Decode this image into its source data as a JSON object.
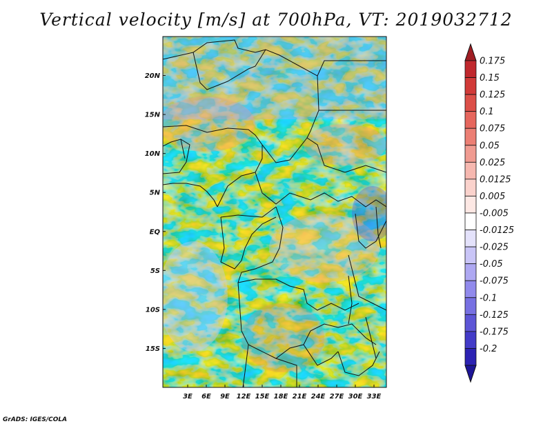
{
  "title": "Vertical velocity [m/s] at 700hPa, VT: 2019032712",
  "credit": "GrADS: IGES/COLA",
  "map": {
    "lon_range": [
      -1,
      35
    ],
    "lat_range": [
      -20,
      25
    ],
    "lat_ticks": [
      {
        "lat": 20,
        "label": "20N"
      },
      {
        "lat": 15,
        "label": "15N"
      },
      {
        "lat": 10,
        "label": "10N"
      },
      {
        "lat": 5,
        "label": "5N"
      },
      {
        "lat": 0,
        "label": "EQ"
      },
      {
        "lat": -5,
        "label": "5S"
      },
      {
        "lat": -10,
        "label": "10S"
      },
      {
        "lat": -15,
        "label": "15S"
      }
    ],
    "lon_ticks": [
      {
        "lon": 3,
        "label": "3E"
      },
      {
        "lon": 6,
        "label": "6E"
      },
      {
        "lon": 9,
        "label": "9E"
      },
      {
        "lon": 12,
        "label": "12E"
      },
      {
        "lon": 15,
        "label": "15E"
      },
      {
        "lon": 18,
        "label": "18E"
      },
      {
        "lon": 21,
        "label": "21E"
      },
      {
        "lon": 24,
        "label": "24E"
      },
      {
        "lon": 27,
        "label": "27E"
      },
      {
        "lon": 30,
        "label": "30E"
      },
      {
        "lon": 33,
        "label": "33E"
      }
    ]
  },
  "colorbar": {
    "levels": [
      {
        "label": "0.175",
        "color": "#c0282d"
      },
      {
        "label": "0.15",
        "color": "#d13a38"
      },
      {
        "label": "0.125",
        "color": "#dc4f48"
      },
      {
        "label": "0.1",
        "color": "#e6665d"
      },
      {
        "label": "0.075",
        "color": "#ec7f74"
      },
      {
        "label": "0.05",
        "color": "#f09b91"
      },
      {
        "label": "0.025",
        "color": "#f6b8b0"
      },
      {
        "label": "0.0125",
        "color": "#fad2cc"
      },
      {
        "label": "0.005",
        "color": "#fde8e4"
      },
      {
        "label": "-0.005",
        "color": "#ffffff"
      },
      {
        "label": "-0.0125",
        "color": "#e4e2fb"
      },
      {
        "label": "-0.025",
        "color": "#c9c5f7"
      },
      {
        "label": "-0.05",
        "color": "#aea8f2"
      },
      {
        "label": "-0.075",
        "color": "#918aec"
      },
      {
        "label": "-0.1",
        "color": "#7770e2"
      },
      {
        "label": "-0.125",
        "color": "#5d55d6"
      },
      {
        "label": "-0.175",
        "color": "#433bc8"
      },
      {
        "label": "-0.2",
        "color": "#2c22b3"
      }
    ],
    "top_cap_color": "#a01e24",
    "bottom_cap_color": "#1d1597"
  }
}
